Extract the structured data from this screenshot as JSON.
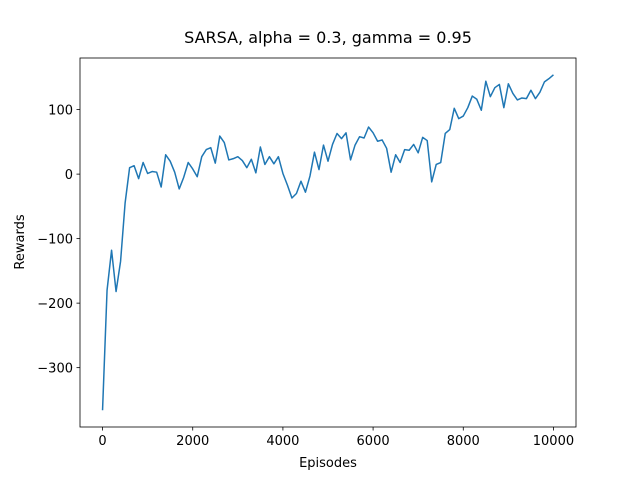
{
  "chart_data": {
    "type": "line",
    "title": "SARSA, alpha = 0.3, gamma = 0.95",
    "xlabel": "Episodes",
    "ylabel": "Rewards",
    "x": [
      0,
      100,
      200,
      300,
      400,
      500,
      600,
      700,
      800,
      900,
      1000,
      1100,
      1200,
      1300,
      1400,
      1500,
      1600,
      1700,
      1800,
      1900,
      2000,
      2100,
      2200,
      2300,
      2400,
      2500,
      2600,
      2700,
      2800,
      2900,
      3000,
      3100,
      3200,
      3300,
      3400,
      3500,
      3600,
      3700,
      3800,
      3900,
      4000,
      4100,
      4200,
      4300,
      4400,
      4500,
      4600,
      4700,
      4800,
      4900,
      5000,
      5100,
      5200,
      5300,
      5400,
      5500,
      5600,
      5700,
      5800,
      5900,
      6000,
      6100,
      6200,
      6300,
      6400,
      6500,
      6600,
      6700,
      6800,
      6900,
      7000,
      7100,
      7200,
      7300,
      7400,
      7500,
      7600,
      7700,
      7800,
      7900,
      8000,
      8100,
      8200,
      8300,
      8400,
      8500,
      8600,
      8700,
      8800,
      8900,
      9000,
      9100,
      9200,
      9300,
      9400,
      9500,
      9600,
      9700,
      9800,
      9900,
      10000
    ],
    "series": [
      {
        "color": "#1f77b4",
        "values": [
          -366,
          -180,
          -118,
          -182,
          -135,
          -45,
          10,
          13,
          -7,
          18,
          1,
          4,
          3,
          -20,
          30,
          20,
          3,
          -23,
          -5,
          18,
          8,
          -4,
          27,
          38,
          41,
          17,
          59,
          49,
          22,
          24,
          27,
          21,
          10,
          23,
          2,
          42,
          15,
          27,
          16,
          27,
          1,
          -17,
          -37,
          -30,
          -11,
          -28,
          -3,
          34,
          7,
          45,
          20,
          46,
          63,
          55,
          64,
          22,
          45,
          58,
          56,
          73,
          64,
          51,
          53,
          40,
          3,
          30,
          18,
          38,
          37,
          46,
          33,
          57,
          52,
          -12,
          15,
          18,
          63,
          69,
          102,
          86,
          90,
          103,
          121,
          116,
          99,
          144,
          120,
          134,
          139,
          103,
          140,
          125,
          115,
          118,
          117,
          130,
          117,
          127,
          143,
          148,
          154
        ]
      }
    ],
    "xlim": [
      -500,
      10500
    ],
    "xticks": [
      0,
      2000,
      4000,
      6000,
      8000,
      10000
    ],
    "ylim": [
      -392,
      180
    ],
    "yticks": [
      {
        "value": -300,
        "label": "−300"
      },
      {
        "value": -200,
        "label": "−200"
      },
      {
        "value": -100,
        "label": "−100"
      },
      0,
      100
    ]
  }
}
